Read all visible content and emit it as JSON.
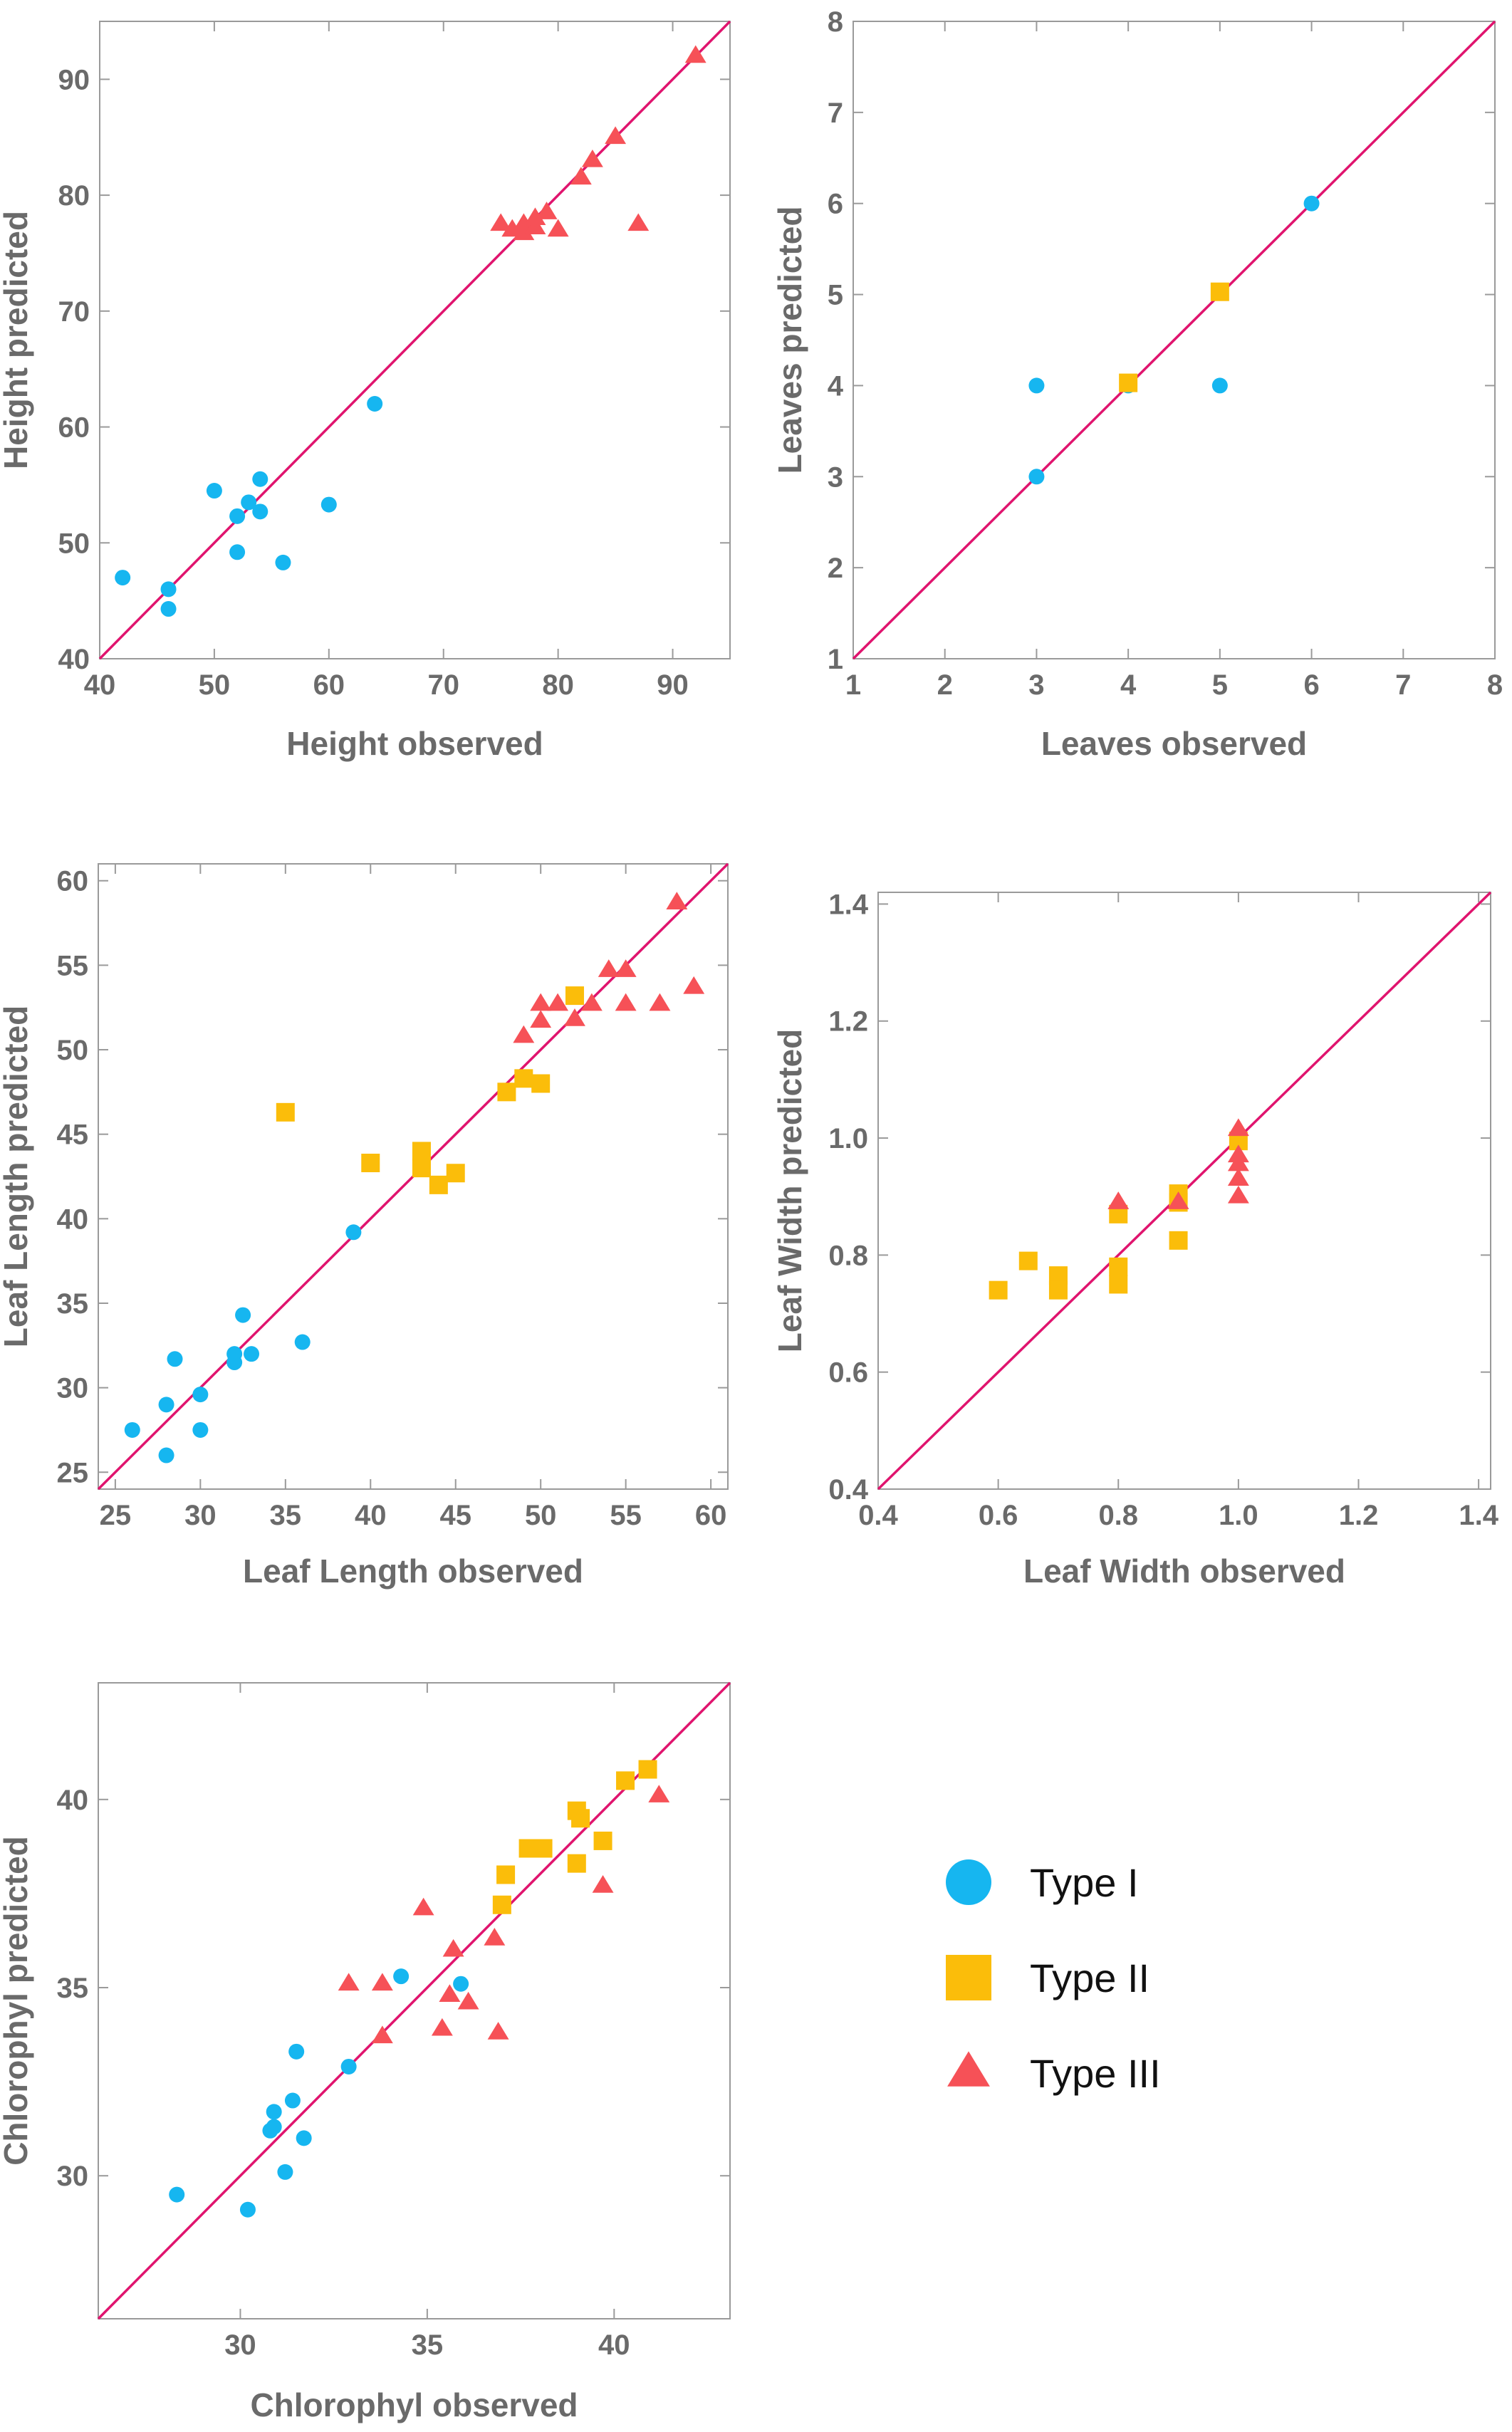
{
  "colors": {
    "type1": "#16b6f0",
    "type2": "#fbbd0a",
    "type3": "#f65157",
    "line": "#e0146e",
    "axis": "#9a9a9a",
    "text": "#6a6a6a"
  },
  "legend": {
    "placement": "right of bottom-left panel",
    "entries": [
      {
        "label": "Type I",
        "marker": "circle",
        "color": "#16b6f0"
      },
      {
        "label": "Type II",
        "marker": "square",
        "color": "#fbbd0a"
      },
      {
        "label": "Type III",
        "marker": "triangle",
        "color": "#f65157"
      }
    ]
  },
  "chart_data": [
    {
      "type": "scatter",
      "title": "",
      "xlabel": "Height observed",
      "ylabel": "Height predicted",
      "xlim": [
        40,
        95
      ],
      "ylim": [
        40,
        95
      ],
      "xticks": [
        40,
        50,
        60,
        70,
        80,
        90
      ],
      "yticks": [
        40,
        50,
        60,
        70,
        80,
        90
      ],
      "diagonal": true,
      "series": [
        {
          "name": "Type I",
          "points": [
            [
              42,
              47
            ],
            [
              46,
              46
            ],
            [
              46,
              44.3
            ],
            [
              50,
              54.5
            ],
            [
              52,
              52.3
            ],
            [
              52,
              49.2
            ],
            [
              53,
              53.5
            ],
            [
              54,
              55.5
            ],
            [
              54,
              52.7
            ],
            [
              56,
              48.3
            ],
            [
              60,
              53.3
            ],
            [
              64,
              62
            ]
          ]
        },
        {
          "name": "Type III",
          "points": [
            [
              75,
              77.5
            ],
            [
              76,
              77
            ],
            [
              77,
              76.7
            ],
            [
              77,
              77.5
            ],
            [
              78,
              77.2
            ],
            [
              78,
              78
            ],
            [
              79,
              78.5
            ],
            [
              80,
              77
            ],
            [
              82,
              81.5
            ],
            [
              83,
              83
            ],
            [
              85,
              85
            ],
            [
              87,
              77.5
            ],
            [
              92,
              92
            ]
          ]
        }
      ]
    },
    {
      "type": "scatter",
      "title": "",
      "xlabel": "Leaves observed",
      "ylabel": "Leaves predicted",
      "xlim": [
        1,
        8
      ],
      "ylim": [
        1,
        8
      ],
      "xticks": [
        1,
        2,
        3,
        4,
        5,
        6,
        7,
        8
      ],
      "yticks": [
        1,
        2,
        3,
        4,
        5,
        6,
        7,
        8
      ],
      "diagonal": true,
      "series": [
        {
          "name": "Type I",
          "points": [
            [
              3,
              4
            ],
            [
              3,
              3
            ],
            [
              4,
              4
            ],
            [
              5,
              4
            ],
            [
              6,
              6
            ]
          ]
        },
        {
          "name": "Type II",
          "points": [
            [
              4,
              4.03
            ],
            [
              5,
              5.03
            ]
          ]
        }
      ]
    },
    {
      "type": "scatter",
      "title": "",
      "xlabel": "Leaf Length observed",
      "ylabel": "Leaf Length predicted",
      "xlim": [
        24,
        61
      ],
      "ylim": [
        24,
        61
      ],
      "xticks": [
        25,
        30,
        35,
        40,
        45,
        50,
        55,
        60
      ],
      "yticks": [
        25,
        30,
        35,
        40,
        45,
        50,
        55,
        60
      ],
      "diagonal": true,
      "series": [
        {
          "name": "Type I",
          "points": [
            [
              26,
              27.5
            ],
            [
              28,
              29
            ],
            [
              28,
              26
            ],
            [
              28.5,
              31.7
            ],
            [
              30,
              29.6
            ],
            [
              30,
              27.5
            ],
            [
              32,
              32
            ],
            [
              32,
              31.5
            ],
            [
              32.5,
              34.3
            ],
            [
              33,
              32
            ],
            [
              36,
              32.7
            ],
            [
              39,
              39.2
            ]
          ]
        },
        {
          "name": "Type II",
          "points": [
            [
              35,
              46.3
            ],
            [
              40,
              43.3
            ],
            [
              43,
              44
            ],
            [
              43,
              43
            ],
            [
              44,
              42
            ],
            [
              45,
              42.7
            ],
            [
              48,
              47.5
            ],
            [
              49,
              48.3
            ],
            [
              50,
              48
            ],
            [
              52,
              53.2
            ]
          ]
        },
        {
          "name": "Type III",
          "points": [
            [
              49,
              50.8
            ],
            [
              50,
              51.7
            ],
            [
              50,
              52.7
            ],
            [
              51,
              52.7
            ],
            [
              52,
              51.8
            ],
            [
              53,
              52.7
            ],
            [
              54,
              54.7
            ],
            [
              55,
              54.7
            ],
            [
              55,
              52.7
            ],
            [
              57,
              52.7
            ],
            [
              58,
              58.7
            ],
            [
              59,
              53.7
            ]
          ]
        }
      ]
    },
    {
      "type": "scatter",
      "title": "",
      "xlabel": "Leaf Width observed",
      "ylabel": "Leaf Width predicted",
      "xlim": [
        0.4,
        1.42
      ],
      "ylim": [
        0.4,
        1.42
      ],
      "xticks": [
        0.4,
        0.6,
        0.8,
        1.0,
        1.2,
        1.4
      ],
      "yticks": [
        0.4,
        0.6,
        0.8,
        1.0,
        1.2,
        1.4
      ],
      "tick_labels": [
        "0.4",
        "0.6",
        "0.8",
        "1.0",
        "1.2",
        "1.4"
      ],
      "diagonal": true,
      "series": [
        {
          "name": "Type II",
          "points": [
            [
              0.6,
              0.74
            ],
            [
              0.65,
              0.79
            ],
            [
              0.7,
              0.765
            ],
            [
              0.7,
              0.74
            ],
            [
              0.8,
              0.87
            ],
            [
              0.8,
              0.78
            ],
            [
              0.8,
              0.75
            ],
            [
              0.9,
              0.905
            ],
            [
              0.9,
              0.89
            ],
            [
              0.9,
              0.825
            ],
            [
              1.0,
              0.995
            ]
          ]
        },
        {
          "name": "Type III",
          "points": [
            [
              0.8,
              0.89
            ],
            [
              0.9,
              0.89
            ],
            [
              1.0,
              1.015
            ],
            [
              1.0,
              0.97
            ],
            [
              1.0,
              0.955
            ],
            [
              1.0,
              0.93
            ],
            [
              1.0,
              0.9
            ]
          ]
        }
      ]
    },
    {
      "type": "scatter",
      "title": "",
      "xlabel": "Chlorophyl observed",
      "ylabel": "Chlorophyl predicted",
      "xlim": [
        26.2,
        43.1
      ],
      "ylim": [
        26.2,
        43.1
      ],
      "xticks": [
        30,
        35,
        40
      ],
      "yticks": [
        30,
        35,
        40
      ],
      "diagonal": true,
      "series": [
        {
          "name": "Type I",
          "points": [
            [
              28.3,
              29.5
            ],
            [
              30.2,
              29.1
            ],
            [
              30.8,
              31.2
            ],
            [
              30.9,
              31.7
            ],
            [
              30.9,
              31.3
            ],
            [
              31.2,
              30.1
            ],
            [
              31.4,
              32
            ],
            [
              31.5,
              33.3
            ],
            [
              31.7,
              31
            ],
            [
              32.9,
              32.9
            ],
            [
              34.3,
              35.3
            ],
            [
              35.9,
              35.1
            ]
          ]
        },
        {
          "name": "Type II",
          "points": [
            [
              37,
              37.2
            ],
            [
              37.1,
              38
            ],
            [
              37.7,
              38.7
            ],
            [
              38.1,
              38.7
            ],
            [
              39,
              39.7
            ],
            [
              39.1,
              39.5
            ],
            [
              39,
              38.3
            ],
            [
              39.7,
              38.9
            ],
            [
              40.3,
              40.5
            ],
            [
              40.9,
              40.8
            ]
          ]
        },
        {
          "name": "Type III",
          "points": [
            [
              32.9,
              35.1
            ],
            [
              33.8,
              33.7
            ],
            [
              33.8,
              35.1
            ],
            [
              34.9,
              37.1
            ],
            [
              35.4,
              33.9
            ],
            [
              35.6,
              34.8
            ],
            [
              35.7,
              36
            ],
            [
              36.1,
              34.6
            ],
            [
              36.8,
              36.3
            ],
            [
              36.9,
              33.8
            ],
            [
              39.7,
              37.7
            ],
            [
              41.2,
              40.1
            ]
          ]
        }
      ]
    }
  ]
}
